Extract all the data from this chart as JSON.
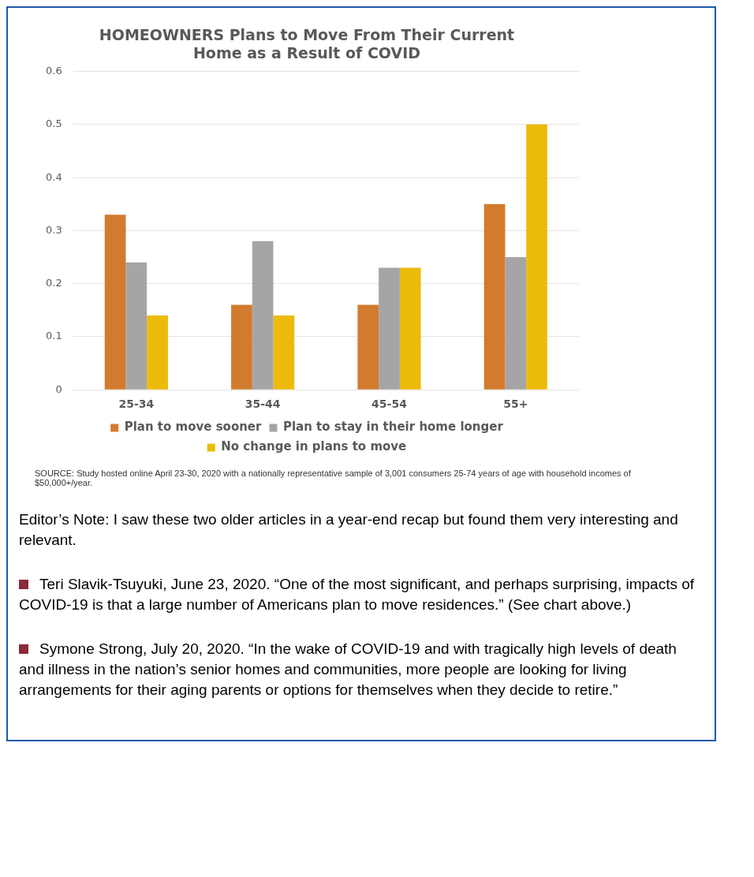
{
  "chart_data": {
    "type": "bar",
    "title": [
      "HOMEOWNERS Plans to Move From Their Current",
      "Home as a Result of COVID"
    ],
    "categories": [
      "25-34",
      "35-44",
      "45-54",
      "55+"
    ],
    "series": [
      {
        "name": "Plan to move sooner",
        "color": "#d27a2e",
        "values": [
          0.33,
          0.16,
          0.16,
          0.35
        ]
      },
      {
        "name": "Plan to stay in their home longer",
        "color": "#a5a5a5",
        "values": [
          0.24,
          0.28,
          0.23,
          0.25
        ]
      },
      {
        "name": "No change in plans to move",
        "color": "#ecbb0a",
        "values": [
          0.14,
          0.14,
          0.23,
          0.5
        ]
      }
    ],
    "ylim": [
      0,
      0.6
    ],
    "yticks": [
      0,
      0.1,
      0.2,
      0.3,
      0.4,
      0.5,
      0.6
    ],
    "grid": "y",
    "legend": "bottom",
    "annotations": [
      "SOURCE: Study hosted online April 23-30, 2020 with a nationally representative sample of 3,001 consumers 25-74 years of age with household incomes of $50,000+/year.",
      "Editor’s Note: I saw these two older articles in a year-end recap but found them very interesting and relevant.",
      "Teri Slavik-Tsuyuki, June 23, 2020. “One of the most significant, and perhaps surprising, impacts of COVID-19 is that a large number of Americans plan to move residences.” (See chart above.)",
      "Symone Strong, July 20, 2020. “In the wake of COVID-19 and with tragically high levels of death and illness in the nation’s senior homes and communities, more people are looking for living arrangements for their aging parents or options for themselves when they decide to retire.”"
    ]
  }
}
